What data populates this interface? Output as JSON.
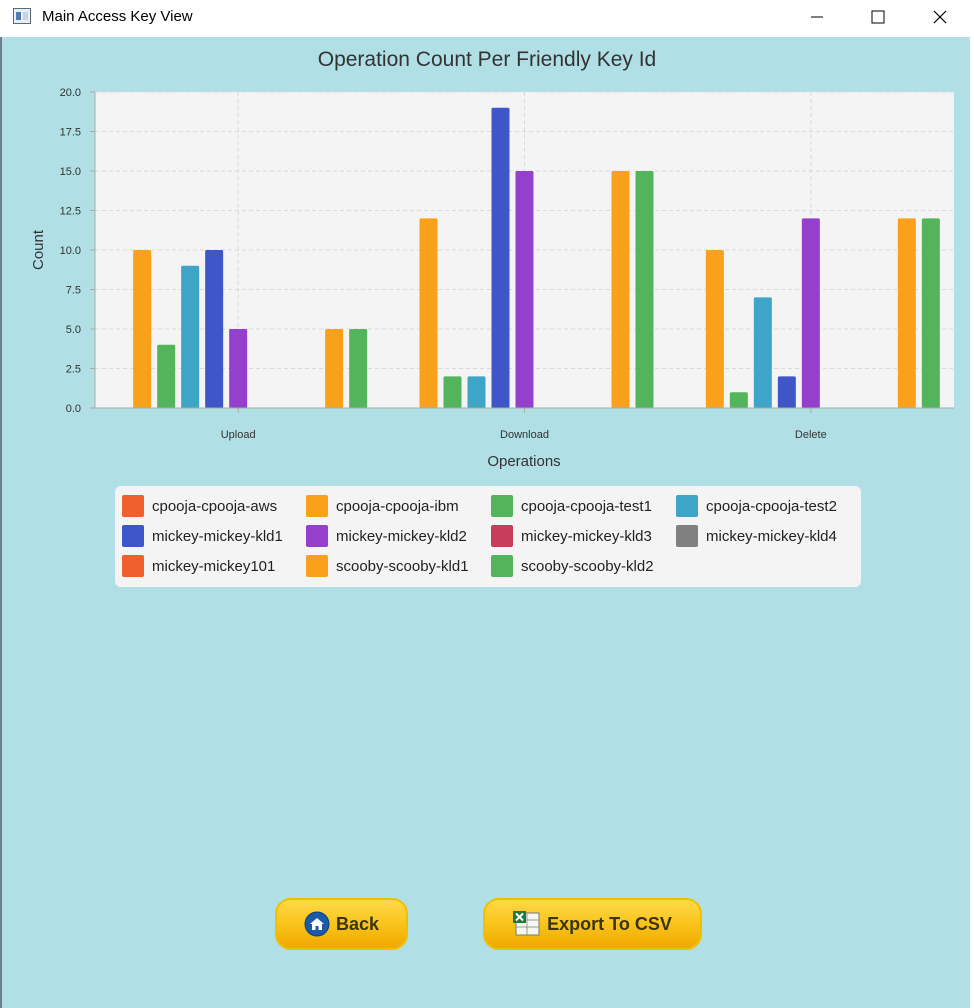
{
  "window": {
    "title": "Main Access Key View"
  },
  "chart_data": {
    "type": "bar",
    "title": "Operation Count Per Friendly Key Id",
    "xlabel": "Operations",
    "ylabel": "Count",
    "ylim": [
      0,
      20
    ],
    "ytick_step": 2.5,
    "yticks": [
      "0.0",
      "2.5",
      "5.0",
      "7.5",
      "10.0",
      "12.5",
      "15.0",
      "17.5",
      "20.0"
    ],
    "categories": [
      "Upload",
      "Download",
      "Delete"
    ],
    "grid": true,
    "legend_position": "bottom",
    "series": [
      {
        "name": "cpooja-cpooja-aws",
        "color": "#f0602f",
        "values": [
          0,
          0,
          0
        ]
      },
      {
        "name": "cpooja-cpooja-ibm",
        "color": "#f9a11b",
        "values": [
          10,
          12,
          10
        ]
      },
      {
        "name": "cpooja-cpooja-test1",
        "color": "#54b45b",
        "values": [
          4,
          2,
          1
        ]
      },
      {
        "name": "cpooja-cpooja-test2",
        "color": "#3ea5c8",
        "values": [
          9,
          2,
          7
        ]
      },
      {
        "name": "mickey-mickey-kld1",
        "color": "#3f56c8",
        "values": [
          10,
          19,
          2
        ]
      },
      {
        "name": "mickey-mickey-kld2",
        "color": "#9540cc",
        "values": [
          5,
          15,
          12
        ]
      },
      {
        "name": "mickey-mickey-kld3",
        "color": "#c83c5c",
        "values": [
          0,
          0,
          0
        ]
      },
      {
        "name": "mickey-mickey-kld4",
        "color": "#808080",
        "values": [
          0,
          0,
          0
        ]
      },
      {
        "name": "mickey-mickey101",
        "color": "#f0602f",
        "values": [
          0,
          0,
          0
        ]
      },
      {
        "name": "scooby-scooby-kld1",
        "color": "#f9a11b",
        "values": [
          5,
          15,
          12
        ]
      },
      {
        "name": "scooby-scooby-kld2",
        "color": "#54b45b",
        "values": [
          5,
          15,
          12
        ]
      }
    ]
  },
  "buttons": {
    "back": {
      "label": "Back",
      "icon": "home-icon"
    },
    "export": {
      "label": "Export To CSV",
      "icon": "excel-icon"
    }
  }
}
